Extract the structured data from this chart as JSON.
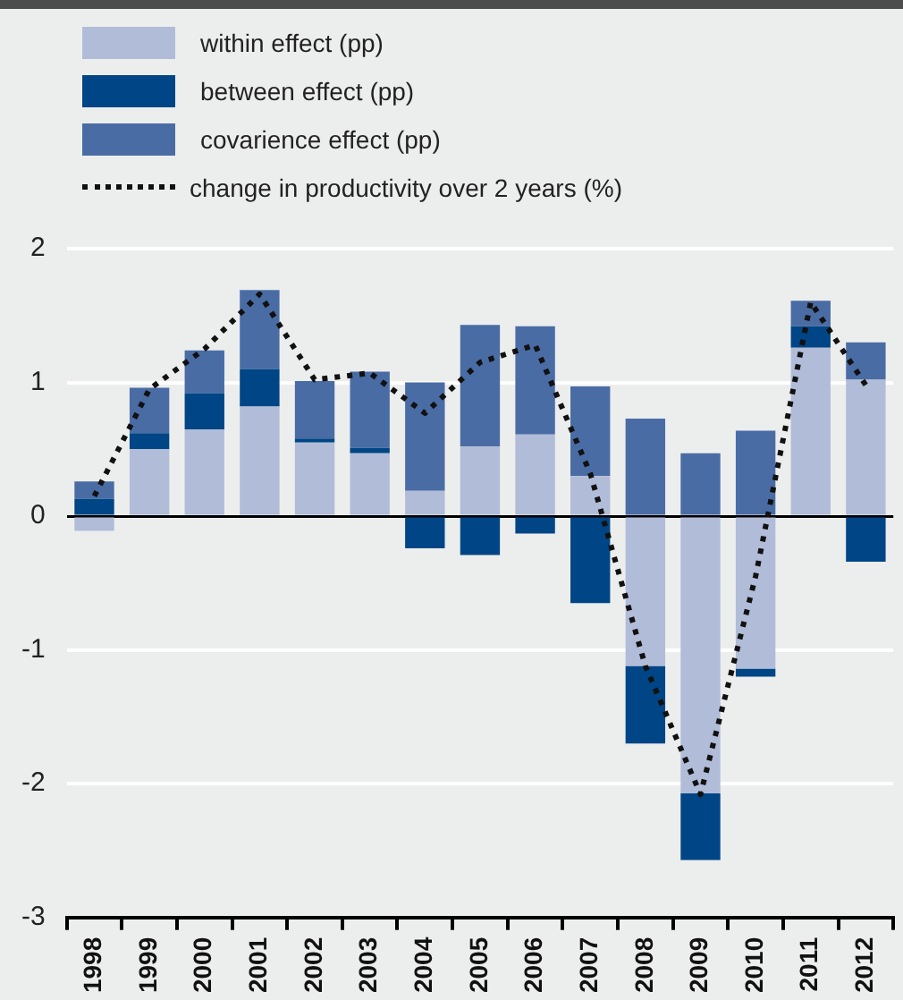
{
  "chart_data": {
    "type": "bar",
    "stacked": true,
    "categories": [
      "1998",
      "1999",
      "2000",
      "2001",
      "2002",
      "2003",
      "2004",
      "2005",
      "2006",
      "2007",
      "2008",
      "2009",
      "2010",
      "2011",
      "2012"
    ],
    "series": [
      {
        "name": "within effect (pp)",
        "color": "#b1bcd8",
        "values": [
          -0.11,
          0.5,
          0.65,
          0.82,
          0.55,
          0.47,
          0.19,
          0.52,
          0.61,
          0.3,
          -1.12,
          -2.07,
          -1.14,
          1.26,
          1.02
        ]
      },
      {
        "name": "between effect (pp)",
        "color": "#004585",
        "values": [
          0.13,
          0.12,
          0.27,
          0.28,
          0.03,
          0.04,
          -0.24,
          -0.29,
          -0.13,
          -0.65,
          -0.58,
          -0.5,
          -0.06,
          0.16,
          -0.34
        ]
      },
      {
        "name": "covarience effect (pp)",
        "color": "#4a6ca5",
        "values": [
          0.13,
          0.34,
          0.32,
          0.59,
          0.43,
          0.57,
          0.81,
          0.91,
          0.81,
          0.67,
          0.73,
          0.47,
          0.64,
          0.19,
          0.28
        ]
      },
      {
        "name": "change in productivity over 2 years (%)",
        "type": "line",
        "color": "#111111",
        "line_style": "dotted",
        "marker": "none",
        "values": [
          0.15,
          0.95,
          1.25,
          1.66,
          1.02,
          1.07,
          0.77,
          1.15,
          1.28,
          0.32,
          -1.12,
          -2.08,
          -0.45,
          1.6,
          0.98
        ]
      }
    ],
    "ylim": [
      -3,
      2
    ],
    "yticks": [
      -3,
      -2,
      -1,
      0,
      1,
      2
    ],
    "grid": "y",
    "legend": "top left"
  }
}
